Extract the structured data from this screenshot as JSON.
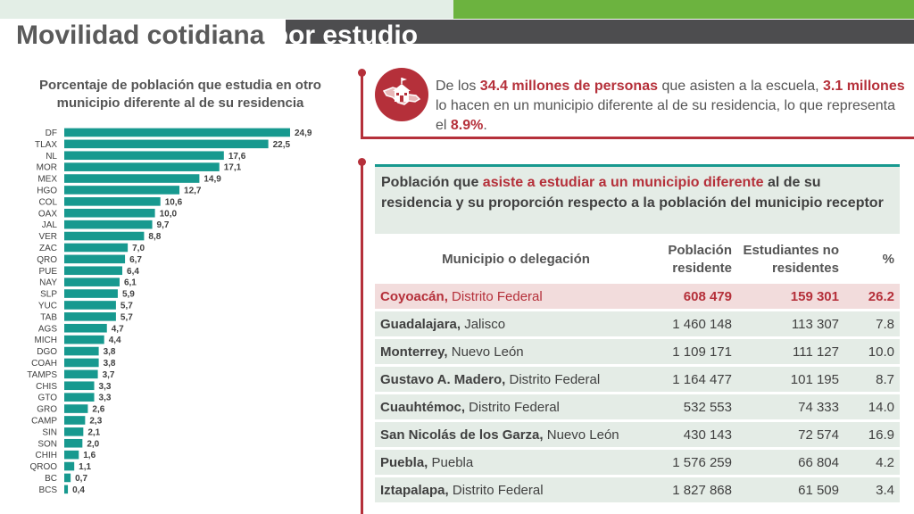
{
  "header": {
    "title_main": "Movilidad cotidiana ",
    "title_highlight": "por estudio"
  },
  "colors": {
    "bar": "#17998f",
    "accent": "#b5303a",
    "green": "#6cb33f",
    "band": "#4d4d4f"
  },
  "chart_data": {
    "type": "bar",
    "orientation": "horizontal",
    "title": "Porcentaje de población que estudia en otro municipio diferente al de su residencia",
    "categories": [
      "DF",
      "TLAX",
      "NL",
      "MOR",
      "MEX",
      "HGO",
      "COL",
      "OAX",
      "JAL",
      "VER",
      "ZAC",
      "QRO",
      "PUE",
      "NAY",
      "SLP",
      "YUC",
      "TAB",
      "AGS",
      "MICH",
      "DGO",
      "COAH",
      "TAMPS",
      "CHIS",
      "GTO",
      "GRO",
      "CAMP",
      "SIN",
      "SON",
      "CHIH",
      "QROO",
      "BC",
      "BCS"
    ],
    "values": [
      24.9,
      22.5,
      17.6,
      17.1,
      14.9,
      12.7,
      10.6,
      10.0,
      9.7,
      8.8,
      7.0,
      6.7,
      6.4,
      6.1,
      5.9,
      5.7,
      5.7,
      4.7,
      4.4,
      3.8,
      3.8,
      3.7,
      3.3,
      3.3,
      2.6,
      2.3,
      2.1,
      2.0,
      1.6,
      1.1,
      0.7,
      0.4
    ],
    "value_labels": [
      "24,9",
      "22,5",
      "17,6",
      "17,1",
      "14,9",
      "12,7",
      "10,6",
      "10,0",
      "9,7",
      "8,8",
      "7,0",
      "6,7",
      "6,4",
      "6,1",
      "5,9",
      "5,7",
      "5,7",
      "4,7",
      "4,4",
      "3,8",
      "3,8",
      "3,7",
      "3,3",
      "3,3",
      "2,6",
      "2,3",
      "2,1",
      "2,0",
      "1,6",
      "1,1",
      "0,7",
      "0,4"
    ],
    "xlim": [
      0,
      25
    ],
    "grid": false,
    "legend": "none"
  },
  "callout": {
    "icon": "mexico-map-school-icon",
    "t1": "De los ",
    "e1": "34.4 millones de personas",
    "t2": " que asisten a la escuela, ",
    "e2": "3.1 millones",
    "t3": " lo hacen en un municipio diferente al de su residencia, lo que representa el ",
    "e3": "8.9%",
    "t4": "."
  },
  "table": {
    "title_a": "Población que ",
    "title_em": "asiste a estudiar a un municipio diferente",
    "title_b": " al de su residencia y su proporción respecto a la población del municipio receptor",
    "headers": {
      "municipio": "Municipio o delegación",
      "poblacion": "Población residente",
      "estudiantes": "Estudiantes no residentes",
      "pct": "%"
    },
    "rows": [
      {
        "mun": "Coyoacán,",
        "estado": " Distrito Federal",
        "pob": "608 479",
        "est": "159 301",
        "pct": "26.2"
      },
      {
        "mun": "Guadalajara,",
        "estado": " Jalisco",
        "pob": "1 460 148",
        "est": "113 307",
        "pct": "7.8"
      },
      {
        "mun": "Monterrey,",
        "estado": " Nuevo León",
        "pob": "1 109 171",
        "est": "111 127",
        "pct": "10.0"
      },
      {
        "mun": "Gustavo A. Madero,",
        "estado": " Distrito Federal",
        "pob": "1 164 477",
        "est": "101 195",
        "pct": "8.7"
      },
      {
        "mun": "Cuauhtémoc,",
        "estado": " Distrito Federal",
        "pob": "532 553",
        "est": "74 333",
        "pct": "14.0"
      },
      {
        "mun": "San Nicolás de los Garza,",
        "estado": " Nuevo León",
        "pob": "430 143",
        "est": "72 574",
        "pct": "16.9"
      },
      {
        "mun": "Puebla,",
        "estado": " Puebla",
        "pob": "1 576 259",
        "est": "66 804",
        "pct": "4.2"
      },
      {
        "mun": "Iztapalapa,",
        "estado": " Distrito Federal",
        "pob": "1 827 868",
        "est": "61 509",
        "pct": "3.4"
      }
    ]
  }
}
